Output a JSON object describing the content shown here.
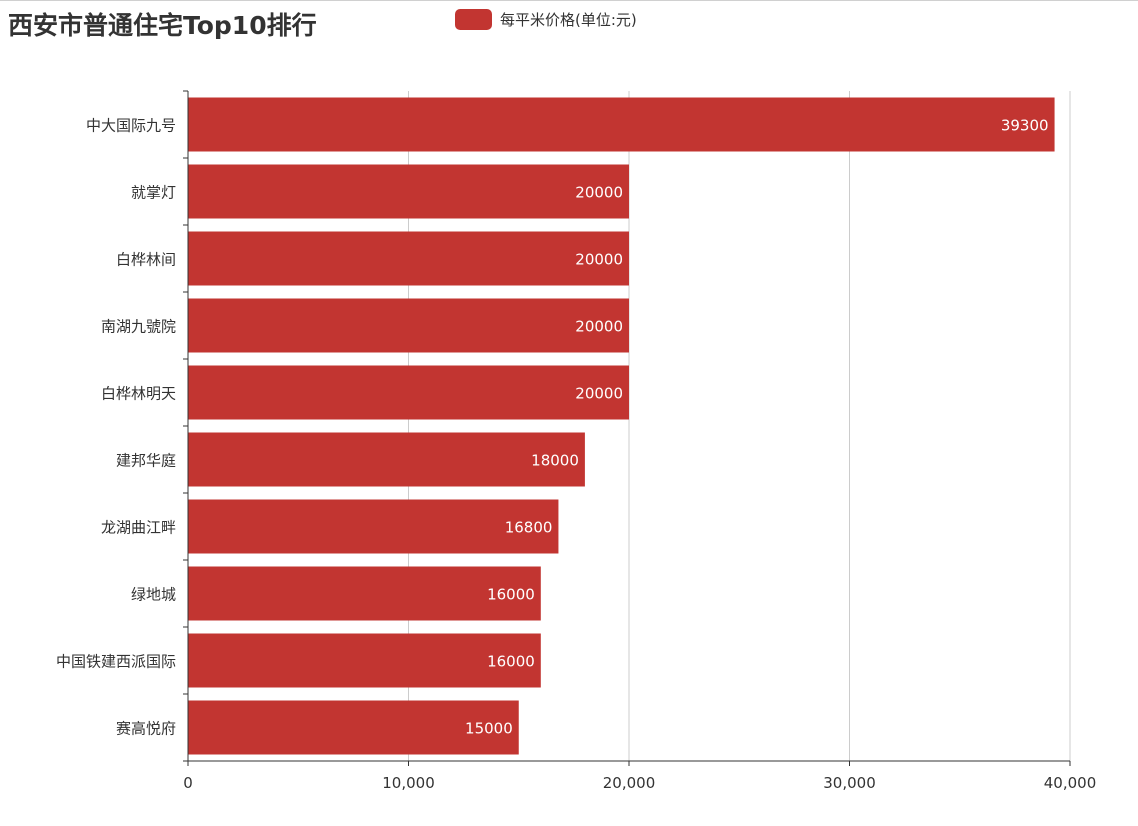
{
  "chart_data": {
    "type": "bar",
    "orientation": "horizontal",
    "title": "西安市普通住宅Top10排行",
    "legend": {
      "position": "top-center"
    },
    "categories": [
      "中大国际九号",
      "就掌灯",
      "白桦林间",
      "南湖九號院",
      "白桦林明天",
      "建邦华庭",
      "龙湖曲江畔",
      "绿地城",
      "中国铁建西派国际",
      "赛高悦府"
    ],
    "series": [
      {
        "name": "每平米价格(单位:元)",
        "color": "#c23531",
        "values": [
          39300,
          20000,
          20000,
          20000,
          20000,
          18000,
          16800,
          16000,
          16000,
          15000
        ]
      }
    ],
    "xlim": [
      0,
      40000
    ],
    "xticks": [
      0,
      10000,
      20000,
      30000,
      40000
    ],
    "xtick_labels": [
      "0",
      "10,000",
      "20,000",
      "30,000",
      "40,000"
    ],
    "grid": true,
    "xlabel": "",
    "ylabel": ""
  }
}
